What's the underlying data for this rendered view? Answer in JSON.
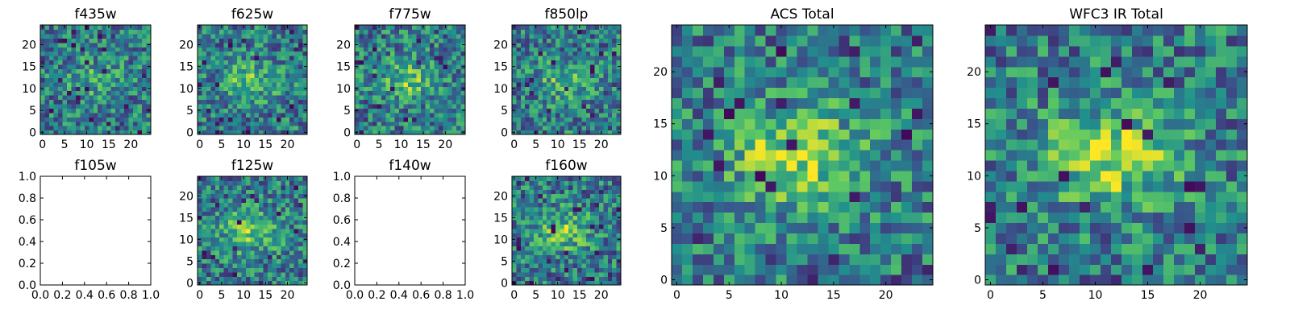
{
  "chart_data": [
    {
      "type": "heatmap",
      "title": "f435w",
      "has_data": true,
      "seed": 11,
      "signal": 0.35,
      "x_ticks": [
        "0",
        "5",
        "10",
        "15",
        "20"
      ],
      "y_ticks": [
        "0",
        "5",
        "10",
        "15",
        "20"
      ],
      "xlim": [
        -0.5,
        24.5
      ],
      "ylim": [
        -0.5,
        24.5
      ]
    },
    {
      "type": "heatmap",
      "title": "f625w",
      "has_data": true,
      "seed": 22,
      "signal": 0.5,
      "x_ticks": [
        "0",
        "5",
        "10",
        "15",
        "20"
      ],
      "y_ticks": [
        "0",
        "5",
        "10",
        "15",
        "20"
      ],
      "xlim": [
        -0.5,
        24.5
      ],
      "ylim": [
        -0.5,
        24.5
      ]
    },
    {
      "type": "heatmap",
      "title": "f775w",
      "has_data": true,
      "seed": 33,
      "signal": 0.55,
      "x_ticks": [
        "0",
        "5",
        "10",
        "15",
        "20"
      ],
      "y_ticks": [
        "0",
        "5",
        "10",
        "15",
        "20"
      ],
      "xlim": [
        -0.5,
        24.5
      ],
      "ylim": [
        -0.5,
        24.5
      ]
    },
    {
      "type": "heatmap",
      "title": "f850lp",
      "has_data": true,
      "seed": 44,
      "signal": 0.45,
      "x_ticks": [
        "0",
        "5",
        "10",
        "15",
        "20"
      ],
      "y_ticks": [
        "0",
        "5",
        "10",
        "15",
        "20"
      ],
      "xlim": [
        -0.5,
        24.5
      ],
      "ylim": [
        -0.5,
        24.5
      ]
    },
    {
      "type": "heatmap",
      "title": "f105w",
      "has_data": false,
      "x_ticks": [
        "0.0",
        "0.2",
        "0.4",
        "0.6",
        "0.8",
        "1.0"
      ],
      "y_ticks": [
        "0.0",
        "0.2",
        "0.4",
        "0.6",
        "0.8",
        "1.0"
      ],
      "xlim": [
        0,
        1
      ],
      "ylim": [
        0,
        1
      ]
    },
    {
      "type": "heatmap",
      "title": "f125w",
      "has_data": true,
      "seed": 55,
      "signal": 0.7,
      "x_ticks": [
        "0",
        "5",
        "10",
        "15",
        "20"
      ],
      "y_ticks": [
        "0",
        "5",
        "10",
        "15",
        "20"
      ],
      "xlim": [
        -0.5,
        24.5
      ],
      "ylim": [
        -0.5,
        24.5
      ]
    },
    {
      "type": "heatmap",
      "title": "f140w",
      "has_data": false,
      "x_ticks": [
        "0.0",
        "0.2",
        "0.4",
        "0.6",
        "0.8",
        "1.0"
      ],
      "y_ticks": [
        "0.0",
        "0.2",
        "0.4",
        "0.6",
        "0.8",
        "1.0"
      ],
      "xlim": [
        0,
        1
      ],
      "ylim": [
        0,
        1
      ]
    },
    {
      "type": "heatmap",
      "title": "f160w",
      "has_data": true,
      "seed": 66,
      "signal": 0.6,
      "x_ticks": [
        "0",
        "5",
        "10",
        "15",
        "20"
      ],
      "y_ticks": [
        "0",
        "5",
        "10",
        "15",
        "20"
      ],
      "xlim": [
        -0.5,
        24.5
      ],
      "ylim": [
        -0.5,
        24.5
      ]
    },
    {
      "type": "heatmap",
      "title": "ACS Total",
      "has_data": true,
      "seed": 77,
      "signal": 0.8,
      "x_ticks": [
        "0",
        "5",
        "10",
        "15",
        "20"
      ],
      "y_ticks": [
        "0",
        "5",
        "10",
        "15",
        "20"
      ],
      "xlim": [
        -0.5,
        24.5
      ],
      "ylim": [
        -0.5,
        24.5
      ]
    },
    {
      "type": "heatmap",
      "title": "WFC3 IR Total",
      "has_data": true,
      "seed": 88,
      "signal": 0.85,
      "x_ticks": [
        "0",
        "5",
        "10",
        "15",
        "20"
      ],
      "y_ticks": [
        "0",
        "5",
        "10",
        "15",
        "20"
      ],
      "xlim": [
        -0.5,
        24.5
      ],
      "ylim": [
        -0.5,
        24.5
      ]
    }
  ],
  "grid_size": 25,
  "colormap": "viridis",
  "colormap_stops": [
    "#440154",
    "#3b528b",
    "#21908d",
    "#5dc962",
    "#fde725"
  ]
}
